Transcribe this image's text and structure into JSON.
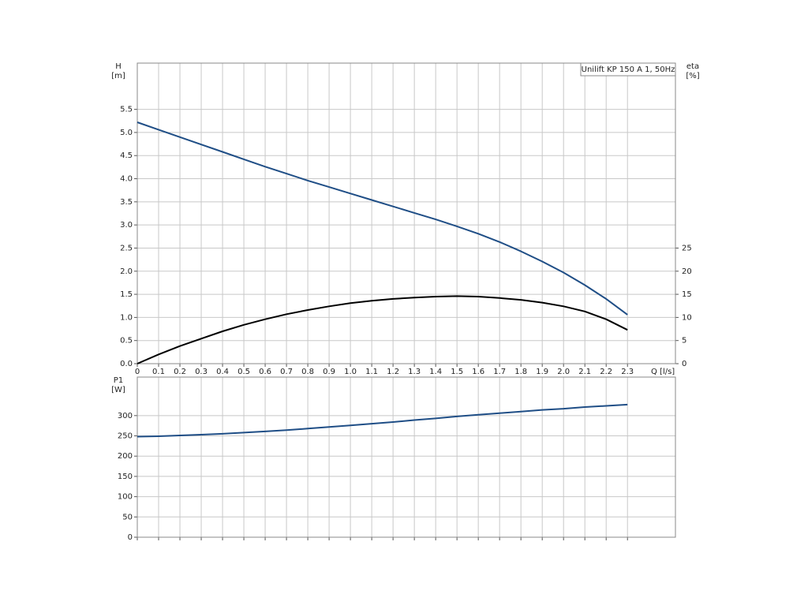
{
  "chart_data": [
    {
      "type": "line",
      "title": "Unilift KP 150 A 1, 50Hz",
      "ylabel": "H",
      "yunit": "[m]",
      "y2label": "eta",
      "y2unit": "[%]",
      "xlabel": "Q [l/s]",
      "x": [
        0,
        0.1,
        0.2,
        0.3,
        0.4,
        0.5,
        0.6,
        0.7,
        0.8,
        0.9,
        1.0,
        1.1,
        1.2,
        1.3,
        1.4,
        1.5,
        1.6,
        1.7,
        1.8,
        1.9,
        2.0,
        2.1,
        2.2,
        2.3
      ],
      "series": [
        {
          "color": "#1f4e86",
          "values": [
            5.22,
            5.06,
            4.9,
            4.74,
            4.58,
            4.42,
            4.26,
            4.11,
            3.96,
            3.82,
            3.68,
            3.54,
            3.4,
            3.26,
            3.12,
            2.97,
            2.81,
            2.63,
            2.43,
            2.21,
            1.97,
            1.7,
            1.4,
            1.06
          ]
        },
        {
          "color": "#000000",
          "axis": "y2",
          "values": [
            0,
            2.0,
            3.8,
            5.4,
            7.0,
            8.4,
            9.6,
            10.7,
            11.6,
            12.4,
            13.1,
            13.6,
            14.0,
            14.3,
            14.5,
            14.6,
            14.5,
            14.2,
            13.8,
            13.2,
            12.4,
            11.3,
            9.6,
            7.3
          ]
        }
      ],
      "xlim": [
        0,
        2.525
      ],
      "xticks": [
        0,
        0.1,
        0.2,
        0.3,
        0.4,
        0.5,
        0.6,
        0.7,
        0.8,
        0.9,
        {
          "value": 1,
          "label": "1.0"
        },
        1.1,
        1.2,
        1.3,
        1.4,
        1.5,
        1.6,
        1.7,
        1.8,
        1.9,
        {
          "value": 2,
          "label": "2.0"
        },
        2.1,
        2.2,
        2.3
      ],
      "ylim": [
        0,
        6.5
      ],
      "yticks": [
        {
          "value": 0,
          "label": "0.0"
        },
        0.5,
        {
          "value": 1,
          "label": "1.0"
        },
        1.5,
        {
          "value": 2,
          "label": "2.0"
        },
        2.5,
        {
          "value": 3,
          "label": "3.0"
        },
        3.5,
        {
          "value": 4,
          "label": "4.0"
        },
        4.5,
        {
          "value": 5,
          "label": "5.0"
        },
        5.5
      ],
      "y2lim": [
        0,
        65
      ],
      "y2ticks": [
        0,
        5,
        10,
        15,
        20,
        25
      ],
      "grid": true
    },
    {
      "type": "line",
      "ylabel": "P1",
      "yunit": "[W]",
      "x": [
        0,
        0.1,
        0.2,
        0.3,
        0.4,
        0.5,
        0.6,
        0.7,
        0.8,
        0.9,
        1.0,
        1.1,
        1.2,
        1.3,
        1.4,
        1.5,
        1.6,
        1.7,
        1.8,
        1.9,
        2.0,
        2.1,
        2.2,
        2.3
      ],
      "series": [
        {
          "color": "#1f4e86",
          "values": [
            248,
            249,
            251,
            253,
            255,
            258,
            261,
            264,
            268,
            272,
            276,
            280,
            284,
            289,
            293,
            298,
            302,
            306,
            310,
            314,
            317,
            321,
            324,
            327
          ]
        }
      ],
      "xlim": [
        0,
        2.525
      ],
      "ylim": [
        0,
        395
      ],
      "yticks": [
        0,
        50,
        100,
        150,
        200,
        250,
        300
      ],
      "grid": true
    }
  ]
}
